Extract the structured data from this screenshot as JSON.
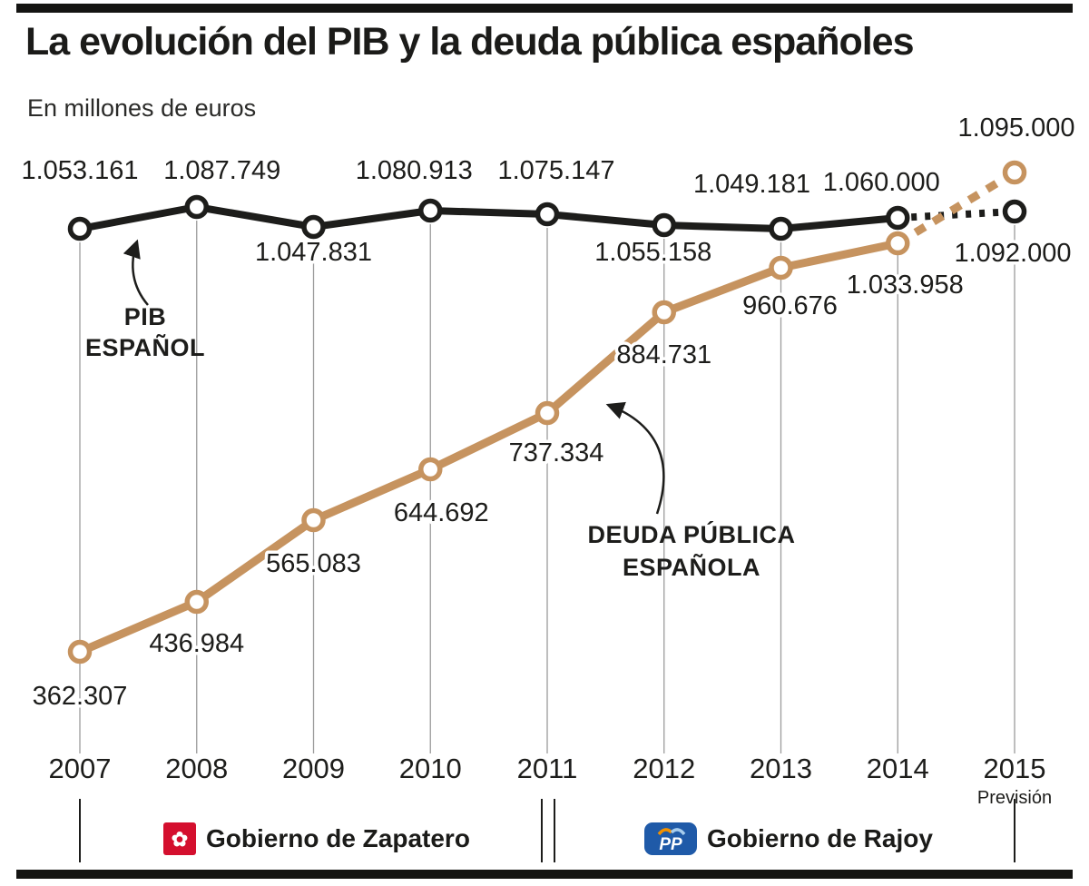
{
  "page": {
    "title": "La evolución del PIB y la deuda pública españoles",
    "subtitle": "En millones de euros"
  },
  "chart_data": {
    "type": "line",
    "title": "La evolución del PIB y la deuda pública españoles",
    "units": "millones de euros",
    "x_categories": [
      "2007",
      "2008",
      "2009",
      "2010",
      "2011",
      "2012",
      "2013",
      "2014",
      "2015"
    ],
    "x_axis_note": "Previsión",
    "x_axis_note_year": "2015",
    "grid": "vertical",
    "legend_position": "inline-annotations",
    "series": [
      {
        "id": "pib",
        "name": "PIB ESPAÑOL",
        "name_lines": [
          "PIB",
          "ESPAÑOL"
        ],
        "color": "#1d1d1b",
        "values": [
          1053161,
          1087749,
          1047831,
          1080913,
          1075147,
          1055158,
          1049181,
          1060000,
          1092000
        ],
        "labels": [
          "1.053.161",
          "1.087.749",
          "1.047.831",
          "1.080.913",
          "1.075.147",
          "1.055.158",
          "1.049.181",
          "1.060.000",
          "1.092.000"
        ],
        "dashed_from_index": 7
      },
      {
        "id": "deuda",
        "name": "DEUDA PÚBLICA ESPAÑOLA",
        "name_lines": [
          "DEUDA PÚBLICA",
          "ESPAÑOLA"
        ],
        "color": "#c6935f",
        "values": [
          362307,
          436984,
          565083,
          644692,
          737334,
          884731,
          960676,
          1033958,
          1095000
        ],
        "labels": [
          "362.307",
          "436.984",
          "565.083",
          "644.692",
          "737.334",
          "884.731",
          "960.676",
          "1.033.958",
          "1.095.000"
        ],
        "dashed_from_index": 7
      }
    ]
  },
  "footer": {
    "governments": [
      {
        "label": "Gobierno de Zapatero",
        "logo": "psoe-rose",
        "logo_color": "#d40f2e",
        "logo_text": "✿"
      },
      {
        "label": "Gobierno de Rajoy",
        "logo": "pp",
        "logo_color": "#1f5aa8",
        "logo_text": "PP"
      }
    ]
  }
}
